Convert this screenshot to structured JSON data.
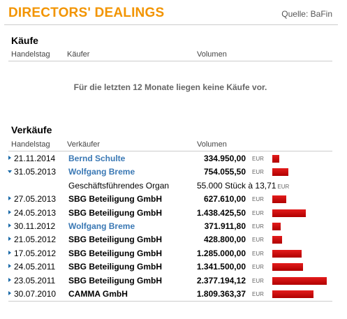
{
  "header": {
    "title": "DIRECTORS' DEALINGS",
    "source": "Quelle: BaFin"
  },
  "purchases": {
    "title": "Käufe",
    "columns": [
      "Handelstag",
      "Käufer",
      "Volumen"
    ],
    "empty_message": "Für die letzten 12 Monate liegen keine Käufe vor."
  },
  "sales": {
    "title": "Verkäufe",
    "columns": [
      "Handelstag",
      "Verkäufer",
      "Volumen"
    ],
    "currency": "EUR",
    "rows": [
      {
        "date": "21.11.2014",
        "name": "Bernd Schulte",
        "link": true,
        "volume": "334.950,00",
        "bar": 0.13,
        "expanded": false
      },
      {
        "date": "31.05.2013",
        "name": "Wolfgang Breme",
        "link": true,
        "volume": "754.055,50",
        "bar": 0.3,
        "expanded": true,
        "sub": {
          "label": "Geschäftsführendes Organ",
          "detail": "55.000 Stück à 13,71",
          "currency": "EUR"
        }
      },
      {
        "date": "27.05.2013",
        "name": "SBG Beteiligung GmbH",
        "link": false,
        "volume": "627.610,00",
        "bar": 0.26,
        "expanded": false
      },
      {
        "date": "24.05.2013",
        "name": "SBG Beteiligung GmbH",
        "link": false,
        "volume": "1.438.425,50",
        "bar": 0.61,
        "expanded": false
      },
      {
        "date": "30.11.2012",
        "name": "Wolfgang Breme",
        "link": true,
        "volume": "371.911,80",
        "bar": 0.16,
        "expanded": false
      },
      {
        "date": "21.05.2012",
        "name": "SBG Beteiligung GmbH",
        "link": false,
        "volume": "428.800,00",
        "bar": 0.18,
        "expanded": false
      },
      {
        "date": "17.05.2012",
        "name": "SBG Beteiligung GmbH",
        "link": false,
        "volume": "1.285.000,00",
        "bar": 0.54,
        "expanded": false
      },
      {
        "date": "24.05.2011",
        "name": "SBG Beteiligung GmbH",
        "link": false,
        "volume": "1.341.500,00",
        "bar": 0.56,
        "expanded": false
      },
      {
        "date": "23.05.2011",
        "name": "SBG Beteiligung GmbH",
        "link": false,
        "volume": "2.377.194,12",
        "bar": 1.0,
        "expanded": false
      },
      {
        "date": "30.07.2010",
        "name": "CAMMA GmbH",
        "link": false,
        "volume": "1.809.363,37",
        "bar": 0.76,
        "expanded": false
      }
    ]
  }
}
